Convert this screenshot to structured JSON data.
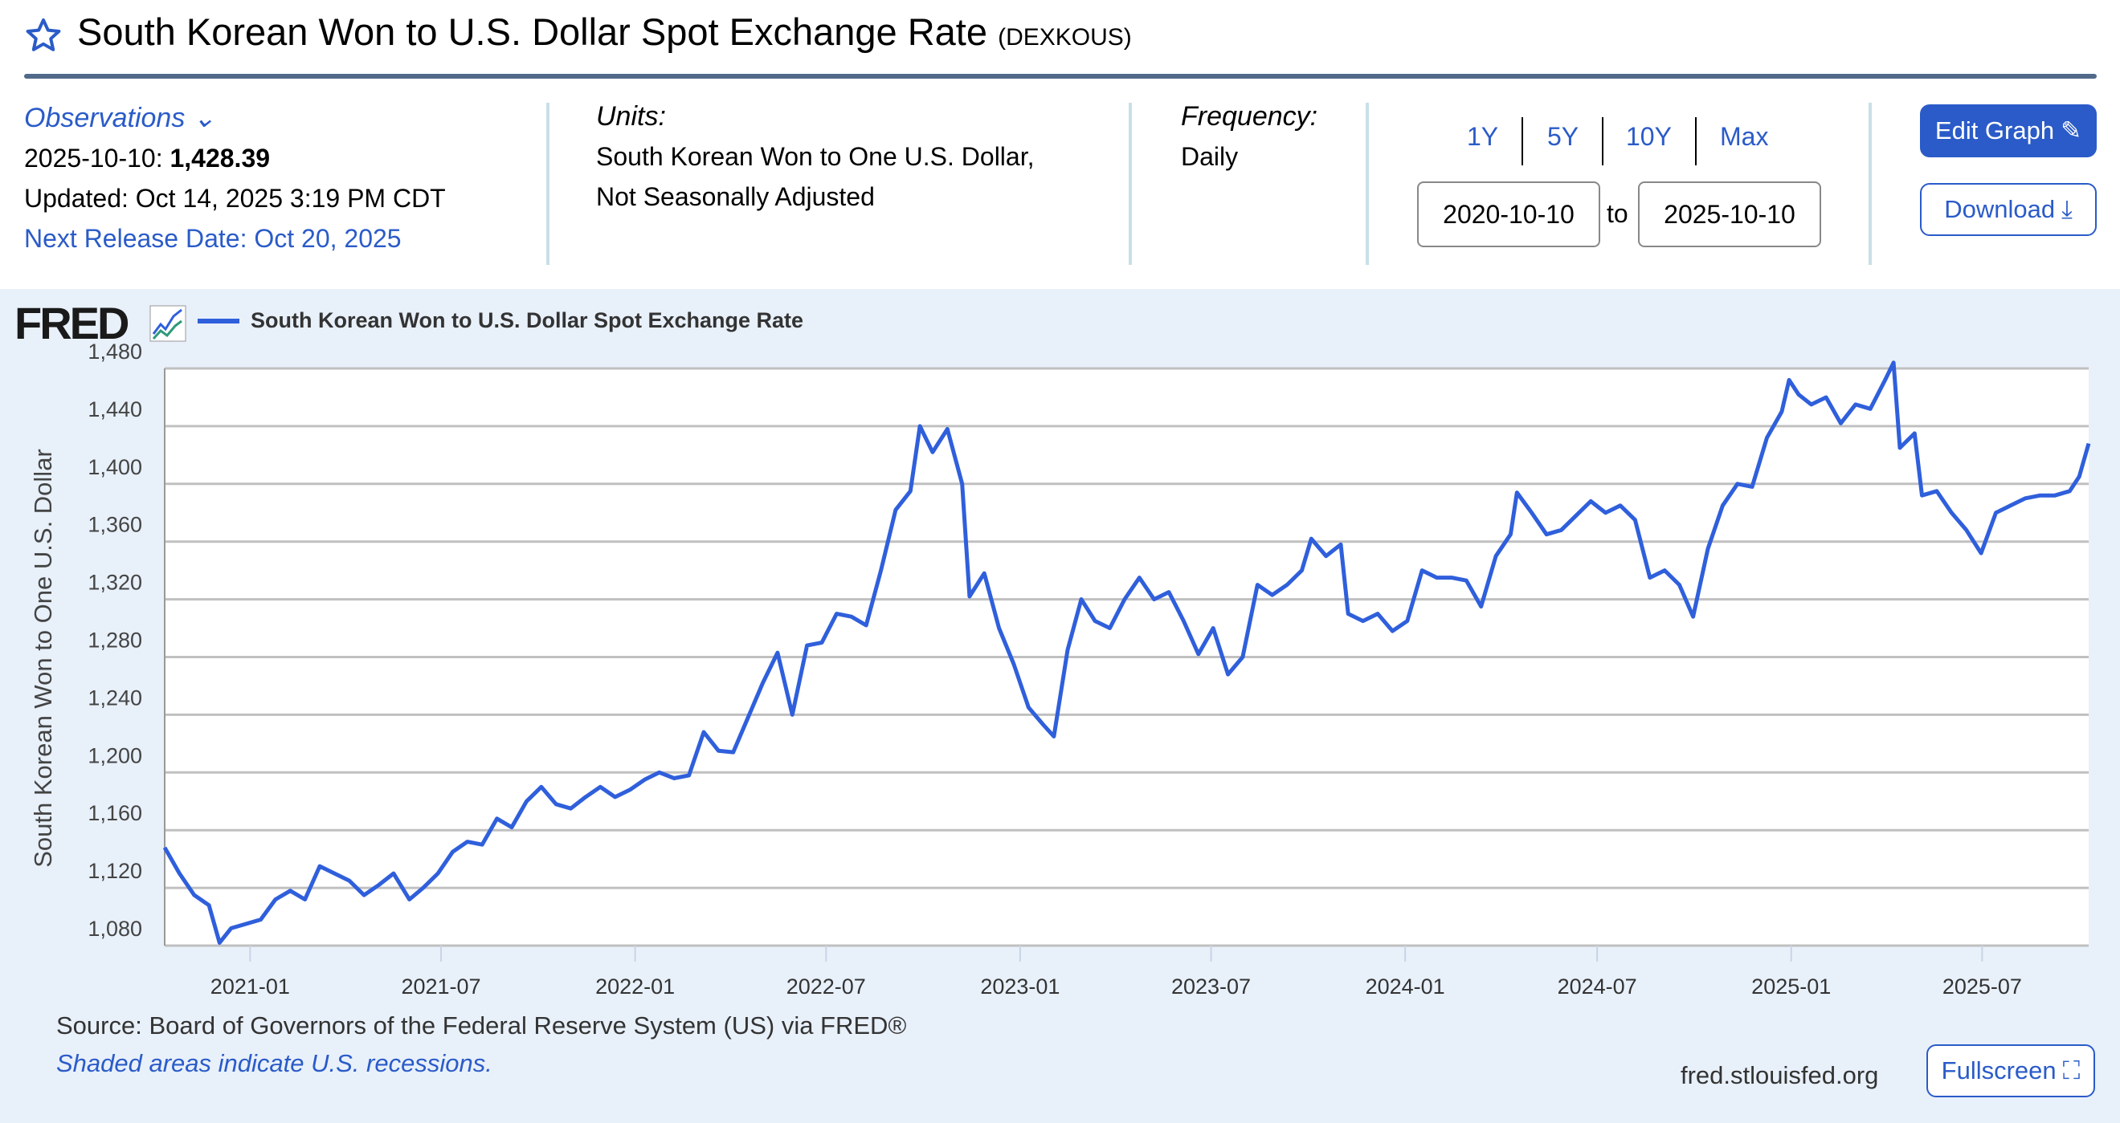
{
  "header": {
    "title": "South Korean Won to U.S. Dollar Spot Exchange Rate",
    "series_id": "(DEXKOUS)"
  },
  "observations": {
    "label": "Observations",
    "date": "2025-10-10:",
    "value": "1,428.39",
    "updated": "Updated: Oct 14, 2025 3:19 PM CDT",
    "next_release": "Next Release Date: Oct 20, 2025"
  },
  "units": {
    "label": "Units:",
    "line1": "South Korean Won to One U.S. Dollar,",
    "line2": "Not Seasonally Adjusted"
  },
  "frequency": {
    "label": "Frequency:",
    "value": "Daily"
  },
  "range_buttons": [
    "1Y",
    "5Y",
    "10Y",
    "Max"
  ],
  "date_range": {
    "start": "2020-10-10",
    "to": "to",
    "end": "2025-10-10"
  },
  "buttons": {
    "edit": "Edit Graph",
    "download": "Download",
    "fullscreen": "Fullscreen"
  },
  "footer": {
    "source": "Source: Board of Governors of the Federal Reserve System (US) via FRED®",
    "recessions": "Shaded areas indicate U.S. recessions.",
    "url": "fred.stlouisfed.org"
  },
  "logo": "FRED",
  "colors": {
    "accent": "#2a5bc8",
    "line": "#2f5fdb",
    "rule": "#51698a",
    "chart_bg": "#e8f0fa"
  },
  "chart_data": {
    "type": "line",
    "title": "South Korean Won to U.S. Dollar Spot Exchange Rate",
    "ylabel": "South Korean Won to One U.S. Dollar",
    "xlabel": "",
    "ylim": [
      1080,
      1480
    ],
    "xlim": [
      "2020-10-12",
      "2025-10-10"
    ],
    "yticks": [
      1080,
      1120,
      1160,
      1200,
      1240,
      1280,
      1320,
      1360,
      1400,
      1440,
      1480
    ],
    "ytick_labels": [
      "1,080",
      "1,120",
      "1,160",
      "1,200",
      "1,240",
      "1,280",
      "1,320",
      "1,360",
      "1,400",
      "1,440",
      "1,480"
    ],
    "xticks": [
      "2021-01",
      "2021-07",
      "2022-01",
      "2022-07",
      "2023-01",
      "2023-07",
      "2024-01",
      "2024-07",
      "2025-01",
      "2025-07"
    ],
    "grid": true,
    "legend": "top-left",
    "series": [
      {
        "name": "South Korean Won to U.S. Dollar Spot Exchange Rate",
        "points": [
          [
            "2020-10-12",
            1148
          ],
          [
            "2020-10-26",
            1130
          ],
          [
            "2020-11-09",
            1115
          ],
          [
            "2020-11-23",
            1108
          ],
          [
            "2020-12-03",
            1082
          ],
          [
            "2020-12-14",
            1092
          ],
          [
            "2020-12-28",
            1095
          ],
          [
            "2021-01-11",
            1098
          ],
          [
            "2021-01-25",
            1112
          ],
          [
            "2021-02-08",
            1118
          ],
          [
            "2021-02-22",
            1112
          ],
          [
            "2021-03-08",
            1135
          ],
          [
            "2021-03-22",
            1130
          ],
          [
            "2021-04-05",
            1125
          ],
          [
            "2021-04-19",
            1115
          ],
          [
            "2021-05-03",
            1122
          ],
          [
            "2021-05-17",
            1130
          ],
          [
            "2021-06-01",
            1112
          ],
          [
            "2021-06-14",
            1120
          ],
          [
            "2021-06-28",
            1130
          ],
          [
            "2021-07-12",
            1145
          ],
          [
            "2021-07-26",
            1152
          ],
          [
            "2021-08-09",
            1150
          ],
          [
            "2021-08-23",
            1168
          ],
          [
            "2021-09-06",
            1162
          ],
          [
            "2021-09-20",
            1180
          ],
          [
            "2021-10-04",
            1190
          ],
          [
            "2021-10-18",
            1178
          ],
          [
            "2021-11-01",
            1175
          ],
          [
            "2021-11-15",
            1183
          ],
          [
            "2021-11-29",
            1190
          ],
          [
            "2021-12-13",
            1183
          ],
          [
            "2021-12-27",
            1188
          ],
          [
            "2022-01-10",
            1195
          ],
          [
            "2022-01-24",
            1200
          ],
          [
            "2022-02-07",
            1196
          ],
          [
            "2022-02-21",
            1198
          ],
          [
            "2022-03-07",
            1228
          ],
          [
            "2022-03-21",
            1215
          ],
          [
            "2022-04-04",
            1214
          ],
          [
            "2022-04-18",
            1238
          ],
          [
            "2022-05-02",
            1262
          ],
          [
            "2022-05-16",
            1283
          ],
          [
            "2022-05-30",
            1240
          ],
          [
            "2022-06-13",
            1288
          ],
          [
            "2022-06-27",
            1290
          ],
          [
            "2022-07-11",
            1310
          ],
          [
            "2022-07-25",
            1308
          ],
          [
            "2022-08-08",
            1302
          ],
          [
            "2022-08-22",
            1340
          ],
          [
            "2022-09-05",
            1382
          ],
          [
            "2022-09-19",
            1395
          ],
          [
            "2022-09-28",
            1440
          ],
          [
            "2022-10-10",
            1422
          ],
          [
            "2022-10-24",
            1438
          ],
          [
            "2022-11-07",
            1400
          ],
          [
            "2022-11-14",
            1322
          ],
          [
            "2022-11-28",
            1338
          ],
          [
            "2022-12-12",
            1300
          ],
          [
            "2022-12-26",
            1275
          ],
          [
            "2023-01-09",
            1245
          ],
          [
            "2023-01-23",
            1233
          ],
          [
            "2023-02-02",
            1225
          ],
          [
            "2023-02-15",
            1285
          ],
          [
            "2023-02-28",
            1320
          ],
          [
            "2023-03-13",
            1305
          ],
          [
            "2023-03-27",
            1300
          ],
          [
            "2023-04-10",
            1320
          ],
          [
            "2023-04-24",
            1335
          ],
          [
            "2023-05-08",
            1320
          ],
          [
            "2023-05-22",
            1325
          ],
          [
            "2023-06-05",
            1305
          ],
          [
            "2023-06-19",
            1282
          ],
          [
            "2023-07-03",
            1300
          ],
          [
            "2023-07-17",
            1268
          ],
          [
            "2023-07-31",
            1280
          ],
          [
            "2023-08-14",
            1330
          ],
          [
            "2023-08-28",
            1323
          ],
          [
            "2023-09-11",
            1330
          ],
          [
            "2023-09-25",
            1340
          ],
          [
            "2023-10-04",
            1362
          ],
          [
            "2023-10-18",
            1350
          ],
          [
            "2023-11-01",
            1358
          ],
          [
            "2023-11-08",
            1310
          ],
          [
            "2023-11-22",
            1305
          ],
          [
            "2023-12-06",
            1310
          ],
          [
            "2023-12-20",
            1298
          ],
          [
            "2024-01-03",
            1305
          ],
          [
            "2024-01-17",
            1340
          ],
          [
            "2024-01-31",
            1335
          ],
          [
            "2024-02-14",
            1335
          ],
          [
            "2024-02-28",
            1333
          ],
          [
            "2024-03-13",
            1315
          ],
          [
            "2024-03-27",
            1350
          ],
          [
            "2024-04-10",
            1365
          ],
          [
            "2024-04-16",
            1394
          ],
          [
            "2024-04-30",
            1380
          ],
          [
            "2024-05-14",
            1365
          ],
          [
            "2024-05-28",
            1368
          ],
          [
            "2024-06-11",
            1378
          ],
          [
            "2024-06-25",
            1388
          ],
          [
            "2024-07-09",
            1380
          ],
          [
            "2024-07-23",
            1385
          ],
          [
            "2024-08-06",
            1375
          ],
          [
            "2024-08-20",
            1335
          ],
          [
            "2024-09-03",
            1340
          ],
          [
            "2024-09-17",
            1330
          ],
          [
            "2024-09-30",
            1308
          ],
          [
            "2024-10-14",
            1355
          ],
          [
            "2024-10-28",
            1385
          ],
          [
            "2024-11-11",
            1400
          ],
          [
            "2024-11-25",
            1398
          ],
          [
            "2024-12-09",
            1432
          ],
          [
            "2024-12-23",
            1450
          ],
          [
            "2024-12-30",
            1472
          ],
          [
            "2025-01-08",
            1462
          ],
          [
            "2025-01-20",
            1455
          ],
          [
            "2025-02-03",
            1460
          ],
          [
            "2025-02-17",
            1442
          ],
          [
            "2025-03-03",
            1455
          ],
          [
            "2025-03-17",
            1452
          ],
          [
            "2025-03-31",
            1472
          ],
          [
            "2025-04-08",
            1484
          ],
          [
            "2025-04-14",
            1425
          ],
          [
            "2025-04-28",
            1435
          ],
          [
            "2025-05-05",
            1392
          ],
          [
            "2025-05-19",
            1395
          ],
          [
            "2025-06-02",
            1380
          ],
          [
            "2025-06-16",
            1368
          ],
          [
            "2025-06-30",
            1352
          ],
          [
            "2025-07-14",
            1380
          ],
          [
            "2025-07-28",
            1385
          ],
          [
            "2025-08-11",
            1390
          ],
          [
            "2025-08-25",
            1392
          ],
          [
            "2025-09-08",
            1392
          ],
          [
            "2025-09-22",
            1395
          ],
          [
            "2025-10-01",
            1405
          ],
          [
            "2025-10-10",
            1428
          ]
        ]
      }
    ]
  }
}
